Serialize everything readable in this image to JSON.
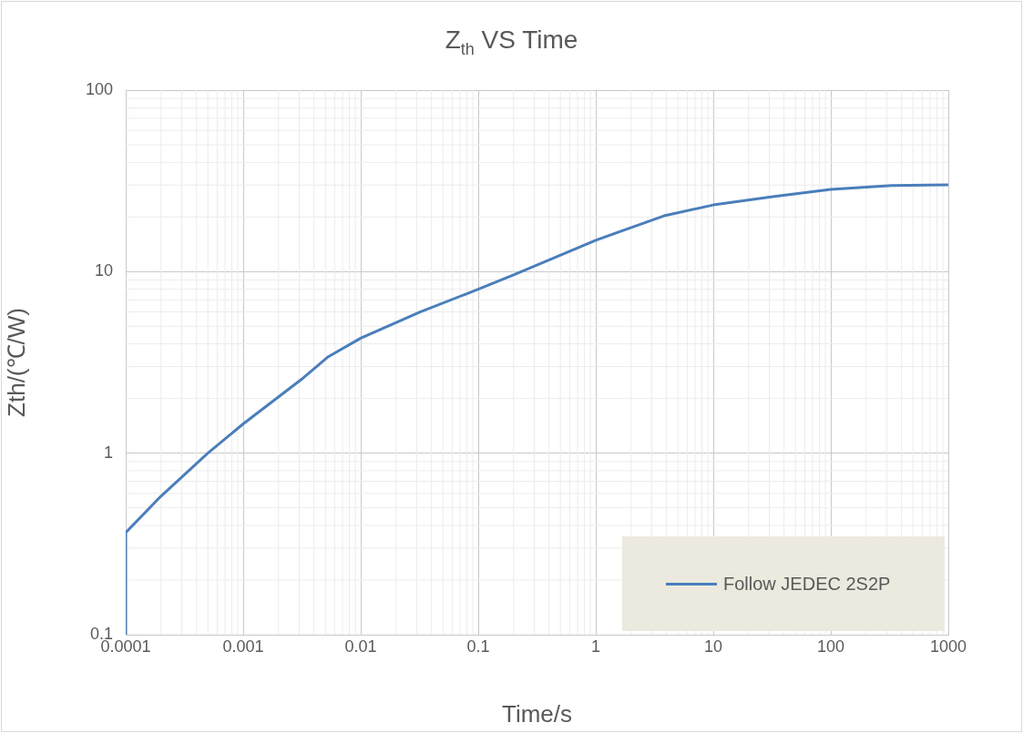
{
  "chart_data": {
    "type": "line",
    "title": "Z$_{th}$ VS Time",
    "xlabel": "Time/s",
    "ylabel": "Zth/(℃/W)",
    "log": "xy",
    "grid": true,
    "legend": "bottom right",
    "marker": "none",
    "line_style": "solid",
    "xlim": [
      0.0001,
      1000
    ],
    "xticks": [
      0.0001,
      0.001,
      0.01,
      0.1,
      1,
      10,
      100,
      1000
    ],
    "ylim": [
      0.1,
      100
    ],
    "yticks": [
      0.1,
      1,
      10,
      100
    ],
    "series": [
      {
        "name": "Follow JEDEC 2S2P",
        "color": "#4a7ebb",
        "x": [
          0.0001,
          0.0001,
          0.0002,
          0.0005,
          0.001,
          0.00325,
          0.0053,
          0.01,
          0.032,
          0.1,
          0.2,
          1,
          3.8,
          10,
          32,
          100,
          330,
          1000
        ],
        "values": [
          0.1,
          0.365,
          0.58,
          1.0,
          1.45,
          2.6,
          3.4,
          4.3,
          6.0,
          8.0,
          9.6,
          14.9,
          20.3,
          23.3,
          25.9,
          28.4,
          29.8,
          30.1
        ]
      }
    ]
  }
}
